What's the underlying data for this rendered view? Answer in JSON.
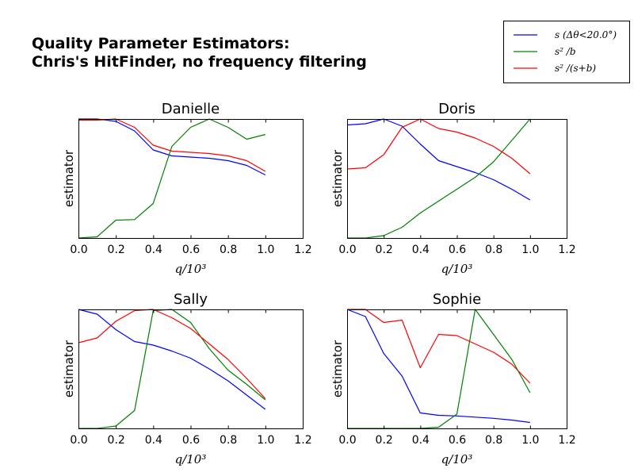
{
  "figure": {
    "title_line1": "Quality Parameter Estimators:",
    "title_line2": "Chris's HitFinder, no frequency filtering"
  },
  "legend": [
    {
      "label": "s (Δθ<20.0°)",
      "color": "#0000ff"
    },
    {
      "label": "s² /b",
      "color": "#008000"
    },
    {
      "label": "s² /(s+b)",
      "color": "#ff0000"
    }
  ],
  "chart_data": [
    {
      "type": "line",
      "title": "Danielle",
      "xlabel": "q/10³",
      "ylabel": "estimator",
      "xlim": [
        0.0,
        1.2
      ],
      "ylim": [
        0,
        1
      ],
      "xticks": [
        "0.0",
        "0.2",
        "0.4",
        "0.6",
        "0.8",
        "1.0",
        "1.2"
      ],
      "x": [
        0.0,
        0.1,
        0.2,
        0.3,
        0.4,
        0.5,
        0.6,
        0.7,
        0.8,
        0.9,
        1.0
      ],
      "series": [
        {
          "name": "s (Δθ<20.0°)",
          "color": "#0000ff",
          "values": [
            1.0,
            1.0,
            0.98,
            0.9,
            0.74,
            0.69,
            0.68,
            0.67,
            0.65,
            0.61,
            0.53
          ]
        },
        {
          "name": "s² /b",
          "color": "#008000",
          "values": [
            0.0,
            0.01,
            0.15,
            0.155,
            0.29,
            0.77,
            0.93,
            1.0,
            0.93,
            0.83,
            0.87
          ]
        },
        {
          "name": "s² /(s+b)",
          "color": "#ff0000",
          "values": [
            0.99,
            0.99,
            1.0,
            0.93,
            0.78,
            0.73,
            0.72,
            0.71,
            0.69,
            0.65,
            0.56
          ]
        }
      ]
    },
    {
      "type": "line",
      "title": "Doris",
      "xlabel": "q/10³",
      "ylabel": "estimator",
      "xlim": [
        0.0,
        1.2
      ],
      "ylim": [
        0,
        1
      ],
      "xticks": [
        "0.0",
        "0.2",
        "0.4",
        "0.6",
        "0.8",
        "1.0",
        "1.2"
      ],
      "x": [
        0.0,
        0.1,
        0.2,
        0.3,
        0.4,
        0.5,
        0.6,
        0.7,
        0.8,
        0.9,
        1.0
      ],
      "series": [
        {
          "name": "s (Δθ<20.0°)",
          "color": "#0000ff",
          "values": [
            0.95,
            0.96,
            1.0,
            0.94,
            0.79,
            0.65,
            0.6,
            0.55,
            0.49,
            0.41,
            0.32
          ]
        },
        {
          "name": "s² /b",
          "color": "#008000",
          "values": [
            0.0,
            0.0,
            0.02,
            0.09,
            0.21,
            0.31,
            0.41,
            0.51,
            0.64,
            0.82,
            1.0
          ]
        },
        {
          "name": "s² /(s+b)",
          "color": "#ff0000",
          "values": [
            0.58,
            0.59,
            0.7,
            0.93,
            1.0,
            0.92,
            0.89,
            0.84,
            0.77,
            0.67,
            0.54
          ]
        }
      ]
    },
    {
      "type": "line",
      "title": "Sally",
      "xlabel": "q/10³",
      "ylabel": "estimator",
      "xlim": [
        0.0,
        1.2
      ],
      "ylim": [
        0,
        1
      ],
      "xticks": [
        "0.0",
        "0.2",
        "0.4",
        "0.6",
        "0.8",
        "1.0",
        "1.2"
      ],
      "x": [
        0.0,
        0.1,
        0.2,
        0.3,
        0.4,
        0.5,
        0.6,
        0.7,
        0.8,
        0.9,
        1.0
      ],
      "series": [
        {
          "name": "s (Δθ<20.0°)",
          "color": "#0000ff",
          "values": [
            1.0,
            0.96,
            0.83,
            0.73,
            0.7,
            0.65,
            0.59,
            0.5,
            0.4,
            0.28,
            0.16
          ]
        },
        {
          "name": "s² /b",
          "color": "#008000",
          "values": [
            0.0,
            0.0,
            0.02,
            0.15,
            0.99,
            1.0,
            0.89,
            0.67,
            0.49,
            0.37,
            0.24
          ]
        },
        {
          "name": "s² /(s+b)",
          "color": "#ff0000",
          "values": [
            0.72,
            0.76,
            0.9,
            0.99,
            1.0,
            0.93,
            0.84,
            0.71,
            0.58,
            0.42,
            0.25
          ]
        }
      ]
    },
    {
      "type": "line",
      "title": "Sophie",
      "xlabel": "q/10³",
      "ylabel": "estimator",
      "xlim": [
        0.0,
        1.2
      ],
      "ylim": [
        0,
        1
      ],
      "xticks": [
        "0.0",
        "0.2",
        "0.4",
        "0.6",
        "0.8",
        "1.0",
        "1.2"
      ],
      "x": [
        0.0,
        0.1,
        0.2,
        0.3,
        0.4,
        0.5,
        0.6,
        0.7,
        0.8,
        0.9,
        1.0
      ],
      "series": [
        {
          "name": "s (Δθ<20.0°)",
          "color": "#0000ff",
          "values": [
            1.0,
            0.94,
            0.63,
            0.44,
            0.13,
            0.11,
            0.105,
            0.095,
            0.085,
            0.07,
            0.05
          ]
        },
        {
          "name": "s² /b",
          "color": "#008000",
          "values": [
            0.0,
            0.0,
            0.0,
            0.0,
            0.0,
            0.01,
            0.12,
            1.0,
            0.79,
            0.58,
            0.3
          ]
        },
        {
          "name": "s² /(s+b)",
          "color": "#ff0000",
          "values": [
            1.0,
            1.0,
            0.89,
            0.91,
            0.51,
            0.79,
            0.78,
            0.71,
            0.64,
            0.54,
            0.38
          ]
        }
      ]
    }
  ]
}
